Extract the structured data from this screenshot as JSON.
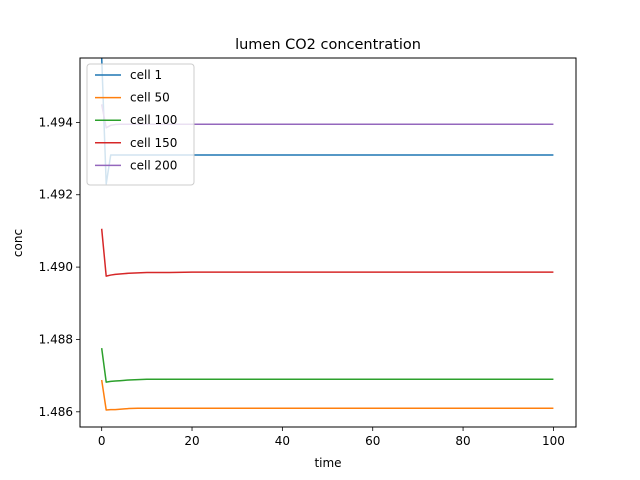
{
  "chart_data": {
    "type": "line",
    "title": "lumen CO2 concentration",
    "xlabel": "time",
    "ylabel": "conc",
    "xlim": [
      -4.8,
      105.0
    ],
    "ylim": [
      1.48558,
      1.49578
    ],
    "xticks": [
      0,
      20,
      40,
      60,
      80,
      100
    ],
    "yticks": [
      1.486,
      1.488,
      1.49,
      1.492,
      1.494
    ],
    "ytick_labels": [
      "1.486",
      "1.488",
      "1.490",
      "1.492",
      "1.494"
    ],
    "grid": false,
    "legend_position": "upper-left",
    "x": [
      0,
      1,
      2,
      3,
      4,
      5,
      6,
      8,
      10,
      15,
      20,
      30,
      40,
      50,
      60,
      70,
      80,
      90,
      100
    ],
    "series": [
      {
        "name": "cell 1",
        "color": "#1f77b4",
        "values": [
          1.4958,
          1.4923,
          1.4931,
          1.4931,
          1.4931,
          1.4931,
          1.4931,
          1.4931,
          1.4931,
          1.4931,
          1.4931,
          1.4931,
          1.4931,
          1.4931,
          1.4931,
          1.4931,
          1.4931,
          1.4931,
          1.4931
        ]
      },
      {
        "name": "cell 50",
        "color": "#ff7f0e",
        "values": [
          1.48688,
          1.48605,
          1.48606,
          1.48606,
          1.48607,
          1.48608,
          1.48609,
          1.4861,
          1.4861,
          1.4861,
          1.4861,
          1.4861,
          1.4861,
          1.4861,
          1.4861,
          1.4861,
          1.4861,
          1.4861,
          1.4861
        ]
      },
      {
        "name": "cell 100",
        "color": "#2ca02c",
        "values": [
          1.48776,
          1.48682,
          1.48684,
          1.48685,
          1.48686,
          1.48687,
          1.48688,
          1.48689,
          1.4869,
          1.4869,
          1.4869,
          1.4869,
          1.4869,
          1.4869,
          1.4869,
          1.4869,
          1.4869,
          1.4869,
          1.4869
        ]
      },
      {
        "name": "cell 150",
        "color": "#d62728",
        "values": [
          1.49106,
          1.48975,
          1.48978,
          1.4898,
          1.48981,
          1.48982,
          1.48983,
          1.48984,
          1.48985,
          1.48985,
          1.48986,
          1.48986,
          1.48986,
          1.48986,
          1.48986,
          1.48986,
          1.48986,
          1.48986,
          1.48986
        ]
      },
      {
        "name": "cell 200",
        "color": "#9467bd",
        "values": [
          1.4945,
          1.49385,
          1.49392,
          1.49394,
          1.49395,
          1.49395,
          1.49395,
          1.49395,
          1.49395,
          1.49395,
          1.49395,
          1.49395,
          1.49395,
          1.49395,
          1.49395,
          1.49395,
          1.49395,
          1.49395,
          1.49395
        ]
      }
    ]
  }
}
